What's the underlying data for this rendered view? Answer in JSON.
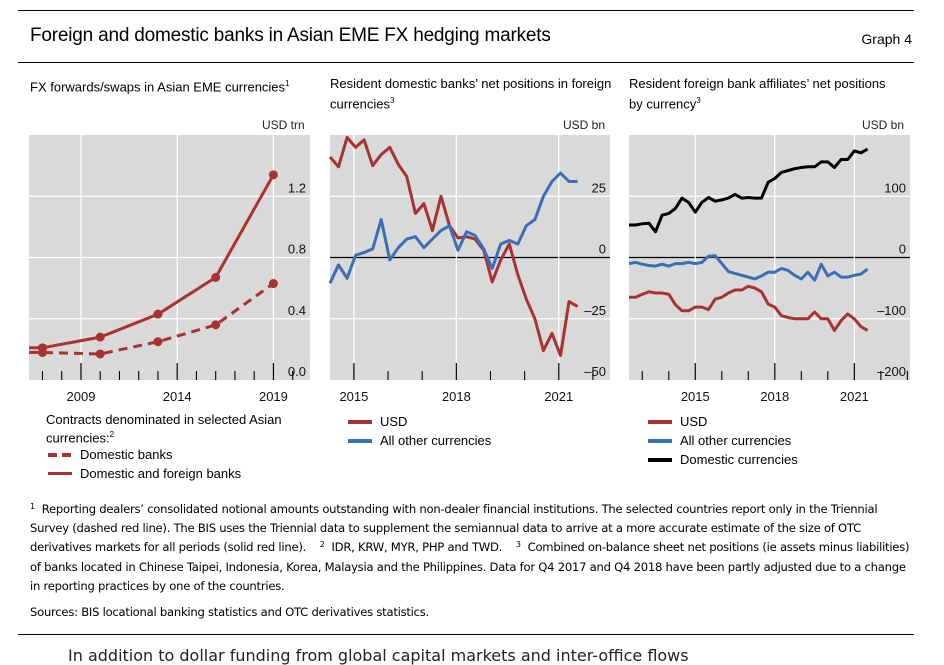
{
  "header": {
    "title": "Foreign and domestic banks in Asian EME FX hedging markets",
    "graph_number": "Graph 4"
  },
  "colors": {
    "red": "#a83232",
    "blue": "#3a6fb5",
    "black": "#000000",
    "plot_bg": "#d9d9d9",
    "grid": "#ffffff"
  },
  "chart_data": [
    {
      "type": "line",
      "title": "FX forwards/swaps in Asian EME currencies",
      "title_footnote": "1",
      "unit": "USD trn",
      "xlim": [
        2006.3,
        2020.9
      ],
      "ylim": [
        0,
        1.6
      ],
      "yticks": [
        0.0,
        0.4,
        0.8,
        1.2
      ],
      "ytick_labels": [
        "0.0",
        "0.4",
        "0.8",
        "1.2"
      ],
      "xticks_major": [
        2009,
        2014,
        2019
      ],
      "xtick_labels": [
        "2009",
        "2014",
        "2019"
      ],
      "legend_heading": "Contracts denominated in selected Asian currencies:",
      "legend_heading_footnote": "2",
      "series": [
        {
          "name": "Domestic banks",
          "style": "dashed",
          "color": "#a83232",
          "markers": true,
          "x": [
            2006.3,
            2007,
            2010,
            2013,
            2016,
            2019
          ],
          "y": [
            0.18,
            0.18,
            0.17,
            0.25,
            0.36,
            0.63
          ]
        },
        {
          "name": "Domestic and foreign banks",
          "style": "solid",
          "color": "#a83232",
          "markers": true,
          "x": [
            2006.3,
            2007,
            2010,
            2013,
            2016,
            2019
          ],
          "y": [
            0.21,
            0.21,
            0.28,
            0.43,
            0.67,
            1.34
          ]
        }
      ]
    },
    {
      "type": "line",
      "title": "Resident domestic banks’ net positions in foreign currencies",
      "title_footnote": "3",
      "unit": "USD bn",
      "xlim": [
        2014.3,
        2022.5
      ],
      "ylim": [
        -50,
        50
      ],
      "yticks": [
        -50,
        -25,
        0,
        25
      ],
      "ytick_labels": [
        "–50",
        "–25",
        "0",
        "25"
      ],
      "xticks_major": [
        2015,
        2018,
        2021
      ],
      "xtick_labels": [
        "2015",
        "2018",
        "2021"
      ],
      "series": [
        {
          "name": "USD",
          "color": "#a83232",
          "x_start": 2014.3,
          "x_step": 0.25,
          "y": [
            41,
            37,
            49,
            45,
            48,
            37.5,
            42,
            45,
            38,
            33,
            18,
            22,
            11,
            25,
            13,
            8,
            8.5,
            7.5,
            3,
            -10,
            -1,
            5.5,
            -7,
            -17,
            -25,
            -38,
            -31,
            -40,
            -18,
            -20
          ]
        },
        {
          "name": "All other currencies",
          "color": "#3a6fb5",
          "x_start": 2014.3,
          "x_step": 0.25,
          "y": [
            -10.5,
            -3,
            -8.5,
            1,
            2,
            3.5,
            15.5,
            -1,
            4,
            7.5,
            8.5,
            4,
            7.5,
            11,
            13,
            3,
            10.5,
            9,
            3.5,
            -4.5,
            5.5,
            7,
            5.5,
            13,
            15.5,
            25,
            31,
            34.5,
            31,
            31
          ]
        }
      ]
    },
    {
      "type": "line",
      "title": "Resident foreign bank affiliates’ net positions by currency",
      "title_footnote": "3",
      "unit": "USD bn",
      "xlim": [
        2012.5,
        2023.1
      ],
      "ylim": [
        -200,
        200
      ],
      "yticks": [
        -200,
        -100,
        0,
        100
      ],
      "ytick_labels": [
        "–200",
        "–100",
        "0",
        "100"
      ],
      "xticks_major": [
        2015,
        2018,
        2021
      ],
      "xtick_labels": [
        "2015",
        "2018",
        "2021"
      ],
      "series": [
        {
          "name": "USD",
          "color": "#a83232",
          "x_start": 2012.5,
          "x_step": 0.25,
          "y": [
            -65,
            -65,
            -60,
            -56,
            -58,
            -58,
            -60,
            -77,
            -87,
            -87,
            -81,
            -81,
            -85,
            -68,
            -65,
            -58,
            -53,
            -53,
            -47,
            -50,
            -56,
            -76,
            -81,
            -95,
            -98,
            -100,
            -100,
            -100,
            -89,
            -100,
            -100,
            -119,
            -103,
            -92,
            -100,
            -113,
            -119
          ]
        },
        {
          "name": "All other currencies",
          "color": "#3a6fb5",
          "x_start": 2012.5,
          "x_step": 0.25,
          "y": [
            -10,
            -8,
            -11,
            -13,
            -14,
            -11,
            -14,
            -10,
            -10,
            -8,
            -10,
            -8,
            2,
            3,
            -10,
            -23,
            -26,
            -29,
            -32,
            -35,
            -30,
            -24,
            -24,
            -18,
            -21,
            -29,
            -35,
            -24,
            -37,
            -11,
            -30,
            -24,
            -32,
            -32,
            -29,
            -27,
            -19
          ]
        },
        {
          "name": "Domestic currencies",
          "color": "#000000",
          "x_start": 2012.5,
          "x_step": 0.25,
          "y": [
            53,
            53,
            55,
            56,
            42,
            69,
            72,
            80,
            97,
            90,
            74,
            90,
            98,
            92,
            94,
            97,
            103,
            97,
            98,
            97,
            97,
            123,
            129,
            139,
            142,
            145,
            147,
            148,
            148,
            156,
            156,
            147,
            160,
            160,
            174,
            171,
            177
          ]
        }
      ]
    }
  ],
  "footnotes": {
    "n1_mark": "1",
    "n1_text": "Reporting dealers’ consolidated notional amounts outstanding with non-dealer financial institutions. The selected countries report only in the Triennial Survey (dashed red line). The BIS uses the Triennial data to supplement the semiannual data to arrive at a more accurate estimate of the size of OTC derivatives markets for all periods (solid red line).",
    "n2_mark": "2",
    "n2_text": "IDR, KRW, MYR, PHP and TWD.",
    "n3_mark": "3",
    "n3_text": "Combined on-balance sheet net positions (ie assets minus liabilities) of banks located in Chinese Taipei, Indonesia, Korea, Malaysia and the Philippines. Data for Q4 2017 and Q4 2018 have been partly adjusted due to a change in reporting practices by one of the countries."
  },
  "sources": "Sources: BIS locational banking statistics and OTC derivatives statistics.",
  "body_text": "In addition to dollar funding from global capital markets and inter-office flows"
}
